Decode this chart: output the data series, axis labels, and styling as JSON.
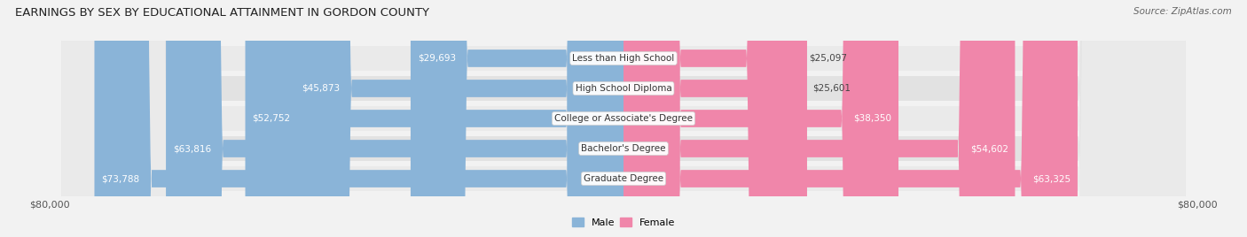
{
  "title": "EARNINGS BY SEX BY EDUCATIONAL ATTAINMENT IN GORDON COUNTY",
  "source": "Source: ZipAtlas.com",
  "categories": [
    "Less than High School",
    "High School Diploma",
    "College or Associate's Degree",
    "Bachelor's Degree",
    "Graduate Degree"
  ],
  "male_values": [
    29693,
    45873,
    52752,
    63816,
    73788
  ],
  "female_values": [
    25097,
    25601,
    38350,
    54602,
    63325
  ],
  "max_value": 80000,
  "male_color": "#8ab4d8",
  "female_color": "#f086aa",
  "row_bg_color": "#e8e8e8",
  "row_alt_bg_color": "#dedede",
  "title_fontsize": 9.5,
  "source_fontsize": 7.5,
  "value_fontsize": 7.5,
  "label_fontsize": 7.5,
  "tick_fontsize": 8,
  "legend_fontsize": 8,
  "xlabel_left": "$80,000",
  "xlabel_right": "$80,000"
}
